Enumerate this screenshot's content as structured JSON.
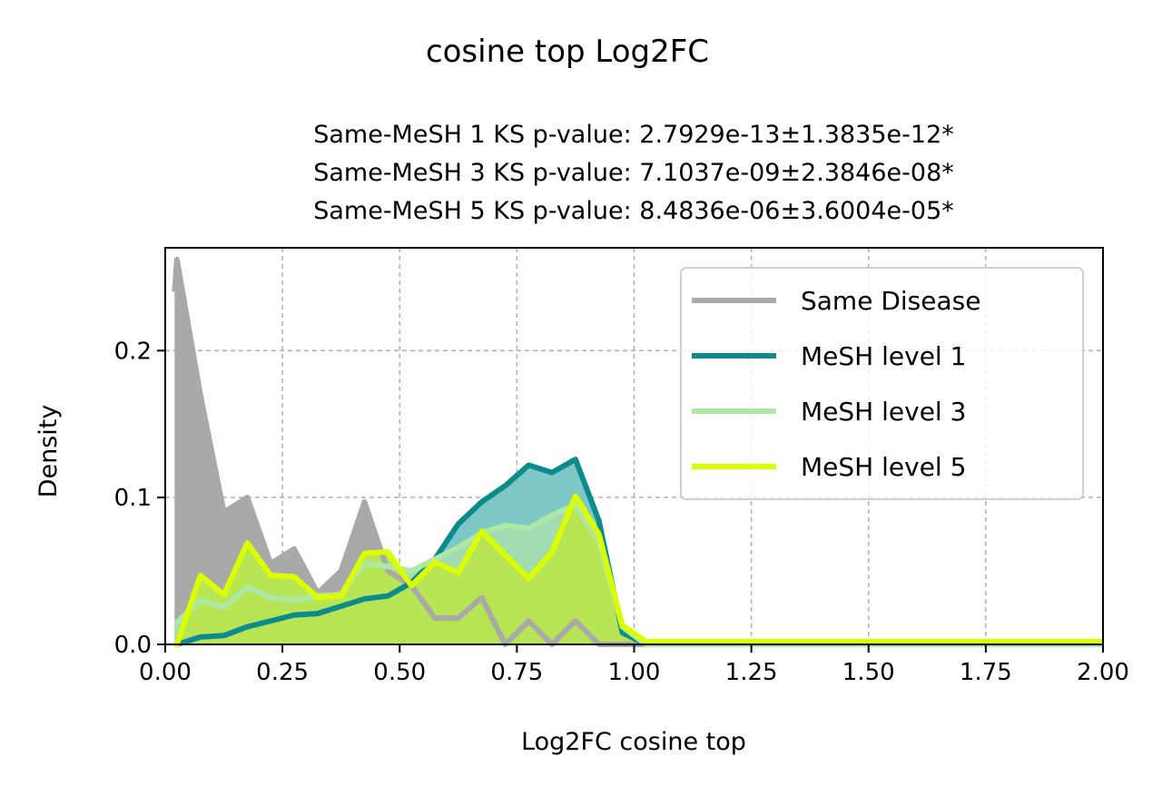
{
  "chart_data": {
    "type": "area",
    "suptitle": "cosine top Log2FC",
    "title_lines": [
      "Same-MeSH 1 KS p-value: 2.7929e-13±1.3835e-12*",
      "Same-MeSH 3 KS p-value: 7.1037e-09±2.3846e-08*",
      "Same-MeSH 5 KS p-value: 8.4836e-06±3.6004e-05*"
    ],
    "xlabel": "Log2FC cosine top",
    "ylabel": "Density",
    "xlim": [
      0,
      2
    ],
    "ylim": [
      0,
      0.27
    ],
    "xticks": [
      "0.00",
      "0.25",
      "0.50",
      "0.75",
      "1.00",
      "1.25",
      "1.50",
      "1.75",
      "2.00"
    ],
    "yticks": [
      "0.0",
      "0.1",
      "0.2"
    ],
    "grid": true,
    "legend_position": "top-right",
    "series": [
      {
        "name": "Same Disease",
        "color": "#a9a9a9",
        "fill_opacity": 1.0,
        "points": [
          [
            0.02,
            0.24
          ],
          [
            0.025,
            0.262
          ],
          [
            0.075,
            0.17
          ],
          [
            0.125,
            0.09
          ],
          [
            0.175,
            0.1
          ],
          [
            0.225,
            0.055
          ],
          [
            0.275,
            0.065
          ],
          [
            0.325,
            0.035
          ],
          [
            0.375,
            0.05
          ],
          [
            0.425,
            0.097
          ],
          [
            0.475,
            0.05
          ],
          [
            0.525,
            0.04
          ],
          [
            0.575,
            0.018
          ],
          [
            0.625,
            0.018
          ],
          [
            0.675,
            0.032
          ],
          [
            0.725,
            0.0
          ],
          [
            0.775,
            0.016
          ],
          [
            0.825,
            0.0
          ],
          [
            0.875,
            0.016
          ],
          [
            0.925,
            0.0
          ],
          [
            0.975,
            0.0
          ],
          [
            1.025,
            0.0
          ],
          [
            1.1,
            0.0
          ],
          [
            1.5,
            0.0
          ],
          [
            2.0,
            0.0
          ]
        ]
      },
      {
        "name": "MeSH level 1",
        "color": "#0b8b8b",
        "fill_color": "#7fc6c6",
        "fill_opacity": 1.0,
        "points": [
          [
            0.02,
            0.0
          ],
          [
            0.025,
            0.0
          ],
          [
            0.075,
            0.005
          ],
          [
            0.125,
            0.006
          ],
          [
            0.175,
            0.012
          ],
          [
            0.225,
            0.016
          ],
          [
            0.275,
            0.02
          ],
          [
            0.325,
            0.021
          ],
          [
            0.375,
            0.026
          ],
          [
            0.425,
            0.031
          ],
          [
            0.475,
            0.033
          ],
          [
            0.525,
            0.042
          ],
          [
            0.575,
            0.058
          ],
          [
            0.625,
            0.082
          ],
          [
            0.675,
            0.097
          ],
          [
            0.725,
            0.108
          ],
          [
            0.775,
            0.122
          ],
          [
            0.825,
            0.117
          ],
          [
            0.875,
            0.126
          ],
          [
            0.925,
            0.084
          ],
          [
            0.975,
            0.008
          ],
          [
            1.025,
            0.0
          ],
          [
            1.1,
            0.0
          ],
          [
            1.5,
            0.0
          ],
          [
            2.0,
            0.0
          ]
        ]
      },
      {
        "name": "MeSH level 3",
        "color": "#aee8a6",
        "fill_color": "#a3dcb0",
        "fill_opacity": 1.0,
        "points": [
          [
            0.02,
            0.015
          ],
          [
            0.025,
            0.015
          ],
          [
            0.075,
            0.03
          ],
          [
            0.125,
            0.025
          ],
          [
            0.175,
            0.039
          ],
          [
            0.225,
            0.032
          ],
          [
            0.275,
            0.03
          ],
          [
            0.325,
            0.033
          ],
          [
            0.375,
            0.034
          ],
          [
            0.425,
            0.055
          ],
          [
            0.475,
            0.053
          ],
          [
            0.525,
            0.05
          ],
          [
            0.575,
            0.058
          ],
          [
            0.625,
            0.066
          ],
          [
            0.675,
            0.076
          ],
          [
            0.725,
            0.081
          ],
          [
            0.775,
            0.079
          ],
          [
            0.825,
            0.088
          ],
          [
            0.875,
            0.095
          ],
          [
            0.925,
            0.07
          ],
          [
            0.975,
            0.012
          ],
          [
            1.025,
            0.0
          ],
          [
            1.1,
            0.0
          ],
          [
            1.5,
            0.0
          ],
          [
            2.0,
            0.0
          ]
        ]
      },
      {
        "name": "MeSH level 5",
        "color": "#dcff00",
        "fill_color": "#b7e553",
        "fill_opacity": 1.0,
        "points": [
          [
            0.02,
            0.0
          ],
          [
            0.025,
            0.0
          ],
          [
            0.075,
            0.047
          ],
          [
            0.125,
            0.034
          ],
          [
            0.175,
            0.069
          ],
          [
            0.225,
            0.047
          ],
          [
            0.275,
            0.046
          ],
          [
            0.325,
            0.032
          ],
          [
            0.375,
            0.033
          ],
          [
            0.425,
            0.062
          ],
          [
            0.475,
            0.063
          ],
          [
            0.525,
            0.04
          ],
          [
            0.575,
            0.056
          ],
          [
            0.625,
            0.049
          ],
          [
            0.675,
            0.077
          ],
          [
            0.725,
            0.061
          ],
          [
            0.775,
            0.045
          ],
          [
            0.825,
            0.063
          ],
          [
            0.875,
            0.101
          ],
          [
            0.925,
            0.075
          ],
          [
            0.975,
            0.013
          ],
          [
            1.025,
            0.002
          ],
          [
            1.1,
            0.002
          ],
          [
            1.5,
            0.002
          ],
          [
            2.0,
            0.002
          ]
        ]
      }
    ]
  }
}
